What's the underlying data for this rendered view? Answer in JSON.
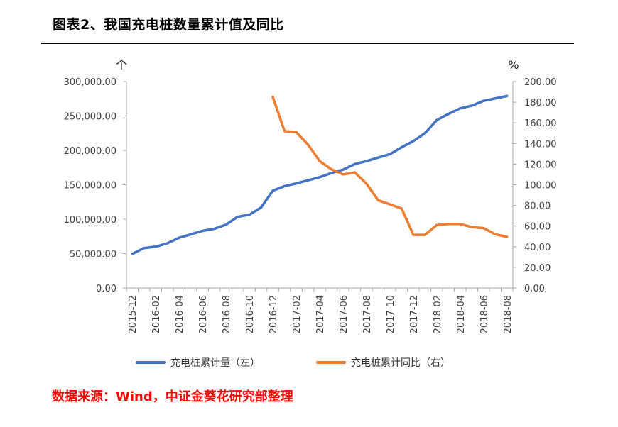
{
  "header": {
    "title": "图表2、我国充电桩数量累计值及同比"
  },
  "footer": {
    "source": "数据来源：Wind，中证金葵花研究部整理"
  },
  "colors": {
    "left_series": "#4472C4",
    "right_series": "#ED7D31",
    "rule": "#000000",
    "source_text": "#FF0000"
  },
  "chart_data": {
    "type": "line",
    "title": "",
    "left_unit": "个",
    "right_unit": "%",
    "x": [
      "2015-12",
      "2016-01",
      "2016-02",
      "2016-03",
      "2016-04",
      "2016-05",
      "2016-06",
      "2016-07",
      "2016-08",
      "2016-09",
      "2016-10",
      "2016-11",
      "2016-12",
      "2017-01",
      "2017-02",
      "2017-03",
      "2017-04",
      "2017-05",
      "2017-06",
      "2017-07",
      "2017-08",
      "2017-09",
      "2017-10",
      "2017-11",
      "2017-12",
      "2018-01",
      "2018-02",
      "2018-03",
      "2018-04",
      "2018-05",
      "2018-06",
      "2018-07",
      "2018-08"
    ],
    "x_tick_labels": [
      "2015-12",
      "2016-02",
      "2016-04",
      "2016-06",
      "2016-08",
      "2016-10",
      "2016-12",
      "2017-02",
      "2017-04",
      "2017-06",
      "2017-08",
      "2017-10",
      "2017-12",
      "2018-02",
      "2018-04",
      "2018-06",
      "2018-08"
    ],
    "y_left": {
      "range": [
        0,
        300000
      ],
      "ticks": [
        "0.00",
        "50,000.00",
        "100,000.00",
        "150,000.00",
        "200,000.00",
        "250,000.00",
        "300,000.00"
      ]
    },
    "y_right": {
      "range": [
        0,
        200
      ],
      "ticks": [
        "0.00",
        "20.00",
        "40.00",
        "60.00",
        "80.00",
        "100.00",
        "120.00",
        "140.00",
        "160.00",
        "180.00",
        "200.00"
      ]
    },
    "grid": false,
    "legend_position": "bottom",
    "series": [
      {
        "name": "充电桩累计量（左）",
        "axis": "left",
        "values": [
          49500,
          58000,
          60000,
          65000,
          73000,
          78000,
          83000,
          86000,
          92000,
          103500,
          106500,
          117000,
          141500,
          148000,
          152000,
          156500,
          161000,
          167000,
          172000,
          180000,
          184500,
          189500,
          194500,
          204500,
          213500,
          225000,
          244000,
          253000,
          261000,
          265000,
          272000,
          275500,
          279000
        ]
      },
      {
        "name": "充电桩累计同比（右）",
        "axis": "right",
        "values": [
          null,
          null,
          null,
          null,
          null,
          null,
          null,
          null,
          null,
          null,
          null,
          null,
          185,
          152,
          151,
          139,
          123,
          115,
          110,
          112,
          101,
          85,
          81,
          77,
          51.5,
          51.5,
          61,
          62,
          62,
          59,
          58,
          52,
          49.5
        ]
      }
    ]
  }
}
